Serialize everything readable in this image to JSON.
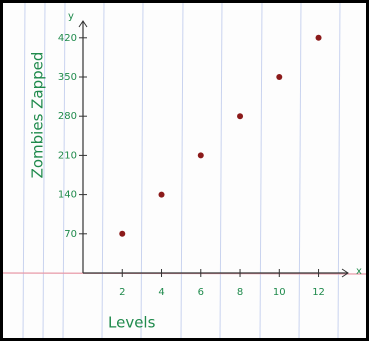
{
  "chart_data": {
    "type": "scatter",
    "x_label": "Levels",
    "y_label": "Zombies Zapped",
    "x_symbol": "x",
    "y_symbol": "y",
    "x": [
      2,
      4,
      6,
      8,
      10,
      12
    ],
    "values": [
      70,
      140,
      210,
      280,
      350,
      420
    ],
    "color": "#8b1a1a",
    "xlim": [
      0,
      13.5
    ],
    "ylim": [
      0,
      450
    ],
    "xticks": [
      2,
      4,
      6,
      8,
      10,
      12
    ],
    "yticks": [
      70,
      140,
      210,
      280,
      350,
      420
    ]
  }
}
